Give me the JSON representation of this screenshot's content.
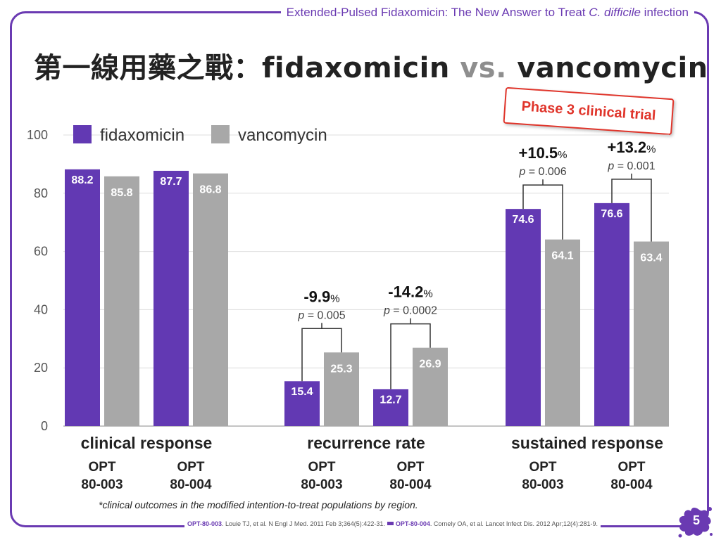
{
  "header": {
    "text_before": "Extended-Pulsed Fidaxomicin: The New Answer to Treat ",
    "text_italic": "C. difficile",
    "text_after": " infection"
  },
  "title": {
    "main": "第一線用藥之戰：fidaxomicin ",
    "vs": "vs.",
    "rest": " vancomycin"
  },
  "stamp": "Phase 3 clinical trial",
  "colors": {
    "fidaxomicin": "#6239b3",
    "vancomycin": "#a8a8a8",
    "accent": "#6a3ab2",
    "stamp": "#e0352b"
  },
  "chart_data": {
    "type": "bar",
    "ylim": [
      0,
      100
    ],
    "y_ticks": [
      "0",
      "20",
      "40",
      "60",
      "80",
      "100"
    ],
    "grid": true,
    "legend": {
      "placement": "top-left",
      "entries": [
        "fidaxomicin",
        "vancomycin"
      ]
    },
    "series_names": [
      "fidaxomicin",
      "vancomycin"
    ],
    "groups": [
      {
        "label": "clinical response",
        "studies": [
          {
            "label_line1": "OPT",
            "label_line2": "80-003",
            "values": [
              88.2,
              85.8
            ],
            "value_labels": [
              "88.2",
              "85.8"
            ]
          },
          {
            "label_line1": "OPT",
            "label_line2": "80-004",
            "values": [
              87.7,
              86.8
            ],
            "value_labels": [
              "87.7",
              "86.8"
            ]
          }
        ]
      },
      {
        "label": "recurrence rate",
        "studies": [
          {
            "label_line1": "OPT",
            "label_line2": "80-003",
            "values": [
              15.4,
              25.3
            ],
            "value_labels": [
              "15.4",
              "25.3"
            ],
            "diff": "-9.9",
            "unit": "%",
            "p_prefix": "p",
            "p_rest": " = 0.005"
          },
          {
            "label_line1": "OPT",
            "label_line2": "80-004",
            "values": [
              12.7,
              26.9
            ],
            "value_labels": [
              "12.7",
              "26.9"
            ],
            "diff": "-14.2",
            "unit": "%",
            "p_prefix": "p",
            "p_rest": " = 0.0002"
          }
        ]
      },
      {
        "label": "sustained response",
        "studies": [
          {
            "label_line1": "OPT",
            "label_line2": "80-003",
            "values": [
              74.6,
              64.1
            ],
            "value_labels": [
              "74.6",
              "64.1"
            ],
            "diff": "+10.5",
            "unit": "%",
            "p_prefix": "p",
            "p_rest": " = 0.006"
          },
          {
            "label_line1": "OPT",
            "label_line2": "80-004",
            "values": [
              76.6,
              63.4
            ],
            "value_labels": [
              "76.6",
              "63.4"
            ],
            "diff": "+13.2",
            "unit": "%",
            "p_prefix": "p",
            "p_rest": " = 0.001"
          }
        ]
      }
    ]
  },
  "footnote": "*clinical outcomes in the modified intention-to-treat populations by region.",
  "refs": {
    "ref1_bold": "OPT-80-003",
    "ref1_rest": ". Louie TJ, et al. N Engl J Med. 2011 Feb 3;364(5):422-31.",
    "ref2_bold": "OPT-80-004",
    "ref2_rest": ". Cornely OA, et al. Lancet Infect Dis. 2012 Apr;12(4):281-9."
  },
  "page_number": "5"
}
